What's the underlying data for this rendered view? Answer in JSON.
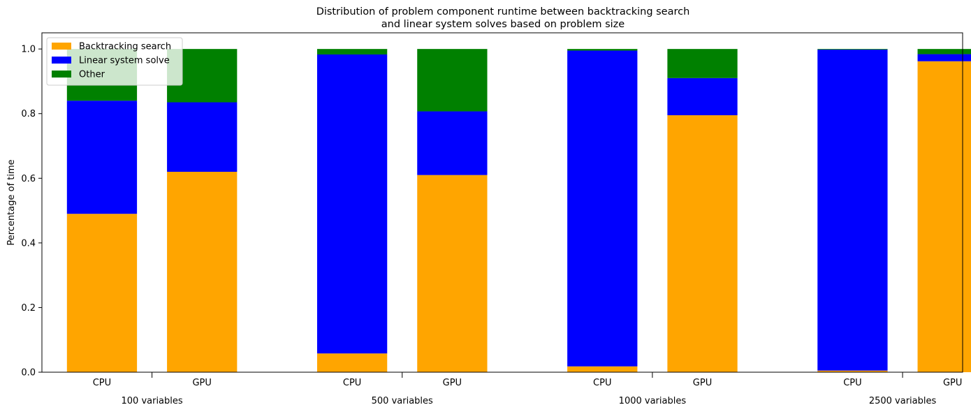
{
  "chart_data": {
    "type": "bar",
    "stacked": true,
    "title_line1": "Distribution of problem component runtime between backtracking search",
    "title_line2": "and linear system solves based on problem size",
    "ylabel": "Percentage of time",
    "ylim": [
      0,
      1.05
    ],
    "yticks": [
      "0.0",
      "0.2",
      "0.4",
      "0.6",
      "0.8",
      "1.0"
    ],
    "ytick_values": [
      0,
      0.2,
      0.4,
      0.6,
      0.8,
      1.0
    ],
    "groups": [
      {
        "label": "100 variables",
        "bars": [
          {
            "label": "CPU",
            "values": [
              0.49,
              0.35,
              0.16
            ]
          },
          {
            "label": "GPU",
            "values": [
              0.62,
              0.215,
              0.165
            ]
          }
        ]
      },
      {
        "label": "500 variables",
        "bars": [
          {
            "label": "CPU",
            "values": [
              0.058,
              0.925,
              0.017
            ]
          },
          {
            "label": "GPU",
            "values": [
              0.61,
              0.197,
              0.193
            ]
          }
        ]
      },
      {
        "label": "1000 variables",
        "bars": [
          {
            "label": "CPU",
            "values": [
              0.018,
              0.977,
              0.005
            ]
          },
          {
            "label": "GPU",
            "values": [
              0.795,
              0.115,
              0.09
            ]
          }
        ]
      },
      {
        "label": "2500 variables",
        "bars": [
          {
            "label": "CPU",
            "values": [
              0.005,
              0.993,
              0.002
            ]
          },
          {
            "label": "GPU",
            "values": [
              0.962,
              0.022,
              0.016
            ]
          }
        ]
      }
    ],
    "series": [
      {
        "name": "Backtracking search",
        "color": "#ffa500"
      },
      {
        "name": "Linear system solve",
        "color": "#0000ff"
      },
      {
        "name": "Other",
        "color": "#008000"
      }
    ],
    "legend_position": "upper-left",
    "grid": false
  }
}
